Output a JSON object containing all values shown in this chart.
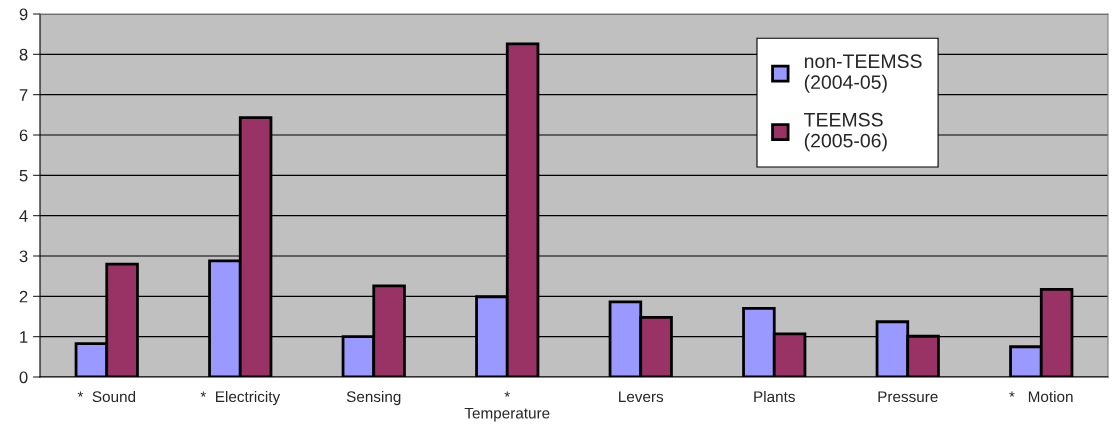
{
  "chart_data": {
    "type": "bar",
    "categories": [
      "*  Sound",
      "*  Electricity",
      "Sensing",
      "*\nTemperature",
      "Levers",
      "Plants",
      "Pressure",
      "*   Motion"
    ],
    "series": [
      {
        "name": "non-TEEMSS\n(2004-05)",
        "color": "#9999ff",
        "values": [
          0.83,
          2.88,
          1.0,
          1.99,
          1.86,
          1.7,
          1.37,
          0.75
        ]
      },
      {
        "name": "TEEMSS\n(2005-06)",
        "color": "#993366",
        "values": [
          2.8,
          6.43,
          2.26,
          8.26,
          1.48,
          1.07,
          1.01,
          2.17
        ]
      }
    ],
    "ylim": [
      0,
      9
    ],
    "yticks": [
      0,
      1,
      2,
      3,
      4,
      5,
      6,
      7,
      8,
      9
    ],
    "grid": "y",
    "legend": "top right"
  }
}
